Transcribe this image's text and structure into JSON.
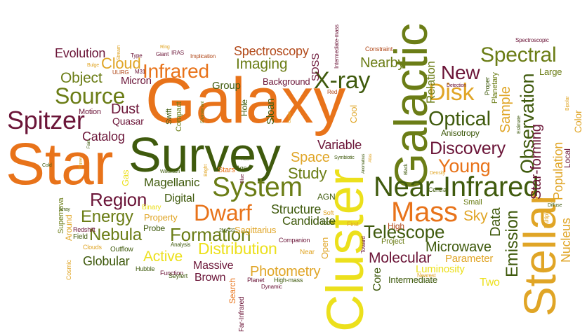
{
  "word_cloud": {
    "palette": {
      "orange": "#e8731a",
      "dark_green": "#3f5a0d",
      "olive": "#6b7d16",
      "maroon": "#6b1538",
      "yellow": "#ece01c",
      "gold": "#e0a526",
      "rust": "#b24a1b"
    },
    "words": [
      {
        "text": "Galaxy",
        "color": "orange",
        "weight": 1.0
      },
      {
        "text": "Star",
        "color": "orange",
        "weight": 0.9
      },
      {
        "text": "Survey",
        "color": "dark_green",
        "weight": 0.88
      },
      {
        "text": "Cluster",
        "color": "yellow",
        "weight": 0.85
      },
      {
        "text": "Galactic",
        "color": "olive",
        "weight": 0.75
      },
      {
        "text": "Stellar",
        "color": "gold",
        "weight": 0.7
      },
      {
        "text": "Near-Infrared",
        "color": "dark_green",
        "weight": 0.55
      },
      {
        "text": "Mass",
        "color": "orange",
        "weight": 0.55
      },
      {
        "text": "System",
        "color": "olive",
        "weight": 0.5
      },
      {
        "text": "X-ray",
        "color": "dark_green",
        "weight": 0.45
      },
      {
        "text": "Spitzer",
        "color": "maroon",
        "weight": 0.45
      },
      {
        "text": "Dwarf",
        "color": "orange",
        "weight": 0.42
      },
      {
        "text": "Source",
        "color": "olive",
        "weight": 0.4
      },
      {
        "text": "Infrared",
        "color": "orange",
        "weight": 0.4
      },
      {
        "text": "Disk",
        "color": "gold",
        "weight": 0.4
      },
      {
        "text": "New",
        "color": "maroon",
        "weight": 0.38
      },
      {
        "text": "Spectral",
        "color": "olive",
        "weight": 0.36
      },
      {
        "text": "Optical",
        "color": "dark_green",
        "weight": 0.36
      },
      {
        "text": "Discovery",
        "color": "maroon",
        "weight": 0.34
      },
      {
        "text": "Young",
        "color": "orange",
        "weight": 0.34
      },
      {
        "text": "Observation",
        "color": "dark_green",
        "weight": 0.33
      },
      {
        "text": "Region",
        "color": "maroon",
        "weight": 0.33
      },
      {
        "text": "Telescope",
        "color": "dark_green",
        "weight": 0.32
      },
      {
        "text": "Formation",
        "color": "olive",
        "weight": 0.32
      },
      {
        "text": "Emission",
        "color": "dark_green",
        "weight": 0.32
      },
      {
        "text": "Cloud",
        "color": "gold",
        "weight": 0.3
      },
      {
        "text": "Energy",
        "color": "olive",
        "weight": 0.3
      },
      {
        "text": "Nebula",
        "color": "olive",
        "weight": 0.3
      },
      {
        "text": "Distribution",
        "color": "yellow",
        "weight": 0.3
      },
      {
        "text": "Study",
        "color": "olive",
        "weight": 0.28
      },
      {
        "text": "Star-forming",
        "color": "maroon",
        "weight": 0.28
      },
      {
        "text": "Sample",
        "color": "gold",
        "weight": 0.26
      },
      {
        "text": "Population",
        "color": "gold",
        "weight": 0.26
      },
      {
        "text": "Molecular",
        "color": "maroon",
        "weight": 0.26
      },
      {
        "text": "Space",
        "color": "gold",
        "weight": 0.26
      },
      {
        "text": "Imaging",
        "color": "olive",
        "weight": 0.25
      },
      {
        "text": "Object",
        "color": "olive",
        "weight": 0.25
      },
      {
        "text": "Photometry",
        "color": "gold",
        "weight": 0.25
      },
      {
        "text": "Active",
        "color": "yellow",
        "weight": 0.25
      },
      {
        "text": "Microwave",
        "color": "dark_green",
        "weight": 0.24
      },
      {
        "text": "Sky",
        "color": "gold",
        "weight": 0.24
      },
      {
        "text": "Data",
        "color": "dark_green",
        "weight": 0.24
      },
      {
        "text": "Spectroscopy",
        "color": "rust",
        "weight": 0.22
      },
      {
        "text": "Evolution",
        "color": "maroon",
        "weight": 0.22
      },
      {
        "text": "Dust",
        "color": "maroon",
        "weight": 0.22
      },
      {
        "text": "Catalog",
        "color": "maroon",
        "weight": 0.22
      },
      {
        "text": "Nearby",
        "color": "olive",
        "weight": 0.22
      },
      {
        "text": "Relation",
        "color": "olive",
        "weight": 0.22
      },
      {
        "text": "Variable",
        "color": "maroon",
        "weight": 0.22
      },
      {
        "text": "Magellanic",
        "color": "dark_green",
        "weight": 0.22
      },
      {
        "text": "Structure",
        "color": "dark_green",
        "weight": 0.22
      },
      {
        "text": "Candidate",
        "color": "dark_green",
        "weight": 0.21
      },
      {
        "text": "Globular",
        "color": "dark_green",
        "weight": 0.21
      },
      {
        "text": "Massive",
        "color": "maroon",
        "weight": 0.2
      },
      {
        "text": "Brown",
        "color": "maroon",
        "weight": 0.2
      },
      {
        "text": "Digital",
        "color": "dark_green",
        "weight": 0.2
      },
      {
        "text": "Nucleus",
        "color": "gold",
        "weight": 0.22
      },
      {
        "text": "Micron",
        "color": "maroon",
        "weight": 0.2
      },
      {
        "text": "Quasar",
        "color": "maroon",
        "weight": 0.19
      },
      {
        "text": "Group",
        "color": "dark_green",
        "weight": 0.18
      },
      {
        "text": "Sloan",
        "color": "dark_green",
        "weight": 0.18
      },
      {
        "text": "Background",
        "color": "maroon",
        "weight": 0.17
      },
      {
        "text": "Parameter",
        "color": "gold",
        "weight": 0.18
      },
      {
        "text": "Luminosity",
        "color": "yellow",
        "weight": 0.18
      },
      {
        "text": "Two",
        "color": "yellow",
        "weight": 0.2
      },
      {
        "text": "Core",
        "color": "dark_green",
        "weight": 0.2
      },
      {
        "text": "Intermediate",
        "color": "dark_green",
        "weight": 0.16
      },
      {
        "text": "SDSS",
        "color": "maroon",
        "weight": 0.17
      },
      {
        "text": "Sagittarius",
        "color": "gold",
        "weight": 0.16
      },
      {
        "text": "Large",
        "color": "olive",
        "weight": 0.16
      },
      {
        "text": "Color",
        "color": "gold",
        "weight": 0.16
      },
      {
        "text": "Local",
        "color": "maroon",
        "weight": 0.13
      },
      {
        "text": "Anisotropy",
        "color": "dark_green",
        "weight": 0.14
      },
      {
        "text": "Property",
        "color": "gold",
        "weight": 0.16
      },
      {
        "text": "Probe",
        "color": "dark_green",
        "weight": 0.14
      },
      {
        "text": "Gas",
        "color": "yellow",
        "weight": 0.16
      },
      {
        "text": "Motion",
        "color": "maroon",
        "weight": 0.13
      },
      {
        "text": "Cool",
        "color": "gold",
        "weight": 0.15
      },
      {
        "text": "Hole",
        "color": "dark_green",
        "weight": 0.14
      },
      {
        "text": "Swift",
        "color": "dark_green",
        "weight": 0.13
      },
      {
        "text": "Compact",
        "color": "olive",
        "weight": 0.13
      },
      {
        "text": "Open",
        "color": "gold",
        "weight": 0.15
      },
      {
        "text": "Search",
        "color": "orange",
        "weight": 0.14
      },
      {
        "text": "AGN",
        "color": "dark_green",
        "weight": 0.14
      },
      {
        "text": "High",
        "color": "rust",
        "weight": 0.13
      },
      {
        "text": "Small",
        "color": "olive",
        "weight": 0.13
      },
      {
        "text": "Project",
        "color": "olive",
        "weight": 0.13
      },
      {
        "text": "Stars",
        "color": "orange",
        "weight": 0.13
      },
      {
        "text": "Supernova",
        "color": "olive",
        "weight": 0.13
      },
      {
        "text": "Around",
        "color": "gold",
        "weight": 0.14
      },
      {
        "text": "Outflow",
        "color": "dark_green",
        "weight": 0.12
      },
      {
        "text": "Field",
        "color": "dark_green",
        "weight": 0.12
      },
      {
        "text": "Clouds",
        "color": "gold",
        "weight": 0.11
      },
      {
        "text": "Redshift",
        "color": "maroon",
        "weight": 0.11
      },
      {
        "text": "Planetary",
        "color": "olive",
        "weight": 0.12
      },
      {
        "text": "Proper",
        "color": "dark_green",
        "weight": 0.11
      },
      {
        "text": "Near",
        "color": "gold",
        "weight": 0.12
      },
      {
        "text": "Binary",
        "color": "yellow",
        "weight": 0.12
      },
      {
        "text": "Function",
        "color": "maroon",
        "weight": 0.11
      },
      {
        "text": "Hubble",
        "color": "dark_green",
        "weight": 0.11
      },
      {
        "text": "Seyfert",
        "color": "dark_green",
        "weight": 0.11
      },
      {
        "text": "Planet",
        "color": "maroon",
        "weight": 0.11
      },
      {
        "text": "High-mass",
        "color": "dark_green",
        "weight": 0.11
      },
      {
        "text": "Dynamic",
        "color": "maroon",
        "weight": 0.1
      },
      {
        "text": "Far-Infrared",
        "color": "maroon",
        "weight": 0.12
      },
      {
        "text": "Cosmic",
        "color": "gold",
        "weight": 0.11
      },
      {
        "text": "Age",
        "color": "dark_green",
        "weight": 0.11
      },
      {
        "text": "Inner",
        "color": "dark_green",
        "weight": 0.11
      },
      {
        "text": "Soft",
        "color": "gold",
        "weight": 0.11
      },
      {
        "text": "First",
        "color": "gold",
        "weight": 0.11
      },
      {
        "text": "Toward",
        "color": "maroon",
        "weight": 0.1
      },
      {
        "text": "Companion",
        "color": "maroon",
        "weight": 0.1
      },
      {
        "text": "Analysis",
        "color": "dark_green",
        "weight": 0.1
      },
      {
        "text": "2MASS",
        "color": "dark_green",
        "weight": 0.09
      },
      {
        "text": "Central",
        "color": "dark_green",
        "weight": 0.1
      },
      {
        "text": "Nearest",
        "color": "gold",
        "weight": 0.1
      },
      {
        "text": "Density",
        "color": "gold",
        "weight": 0.09
      },
      {
        "text": "Multiple",
        "color": "gold",
        "weight": 0.09
      },
      {
        "text": "Diffuse",
        "color": "dark_green",
        "weight": 0.08
      },
      {
        "text": "Bipolar",
        "color": "gold",
        "weight": 0.08
      },
      {
        "text": "Estimate",
        "color": "dark_green",
        "weight": 0.08
      },
      {
        "text": "Spectroscopic",
        "color": "maroon",
        "weight": 0.08
      },
      {
        "text": "Detection",
        "color": "maroon",
        "weight": 0.08
      },
      {
        "text": "Constraint",
        "color": "rust",
        "weight": 0.09
      },
      {
        "text": "Intermediate-mass",
        "color": "maroon",
        "weight": 0.08
      },
      {
        "text": "Red",
        "color": "rust",
        "weight": 0.09
      },
      {
        "text": "Implication",
        "color": "rust",
        "weight": 0.09
      },
      {
        "text": "Environment",
        "color": "olive",
        "weight": 0.08
      },
      {
        "text": "Giant",
        "color": "maroon",
        "weight": 0.09
      },
      {
        "text": "IRAS",
        "color": "maroon",
        "weight": 0.09
      },
      {
        "text": "Ring",
        "color": "gold",
        "weight": 0.08
      },
      {
        "text": "Type",
        "color": "maroon",
        "weight": 0.09
      },
      {
        "text": "Stream",
        "color": "gold",
        "weight": 0.08
      },
      {
        "text": "Bulge",
        "color": "gold",
        "weight": 0.08
      },
      {
        "text": "ULIRG",
        "color": "rust",
        "weight": 0.09
      },
      {
        "text": "M31",
        "color": "maroon",
        "weight": 0.09
      },
      {
        "text": "Three",
        "color": "gold",
        "weight": 0.08
      },
      {
        "text": "Faint",
        "color": "dark_green",
        "weight": 0.07
      },
      {
        "text": "Cold",
        "color": "dark_green",
        "weight": 0.07
      },
      {
        "text": "Array",
        "color": "dark_green",
        "weight": 0.08
      },
      {
        "text": "Wilkinson",
        "color": "dark_green",
        "weight": 0.08
      },
      {
        "text": "Bright",
        "color": "gold",
        "weight": 0.08
      },
      {
        "text": "Blue",
        "color": "maroon",
        "weight": 0.08
      },
      {
        "text": "HCO+",
        "color": "dark_green",
        "weight": 0.06
      },
      {
        "text": "Symbiotic",
        "color": "dark_green",
        "weight": 0.08
      },
      {
        "text": "Anomalous",
        "color": "dark_green",
        "weight": 0.07
      },
      {
        "text": "Atlas",
        "color": "gold",
        "weight": 0.07
      },
      {
        "text": "Black",
        "color": "dark_green",
        "weight": 0.08
      },
      {
        "text": "Center",
        "color": "gold",
        "weight": 0.07
      }
    ]
  }
}
